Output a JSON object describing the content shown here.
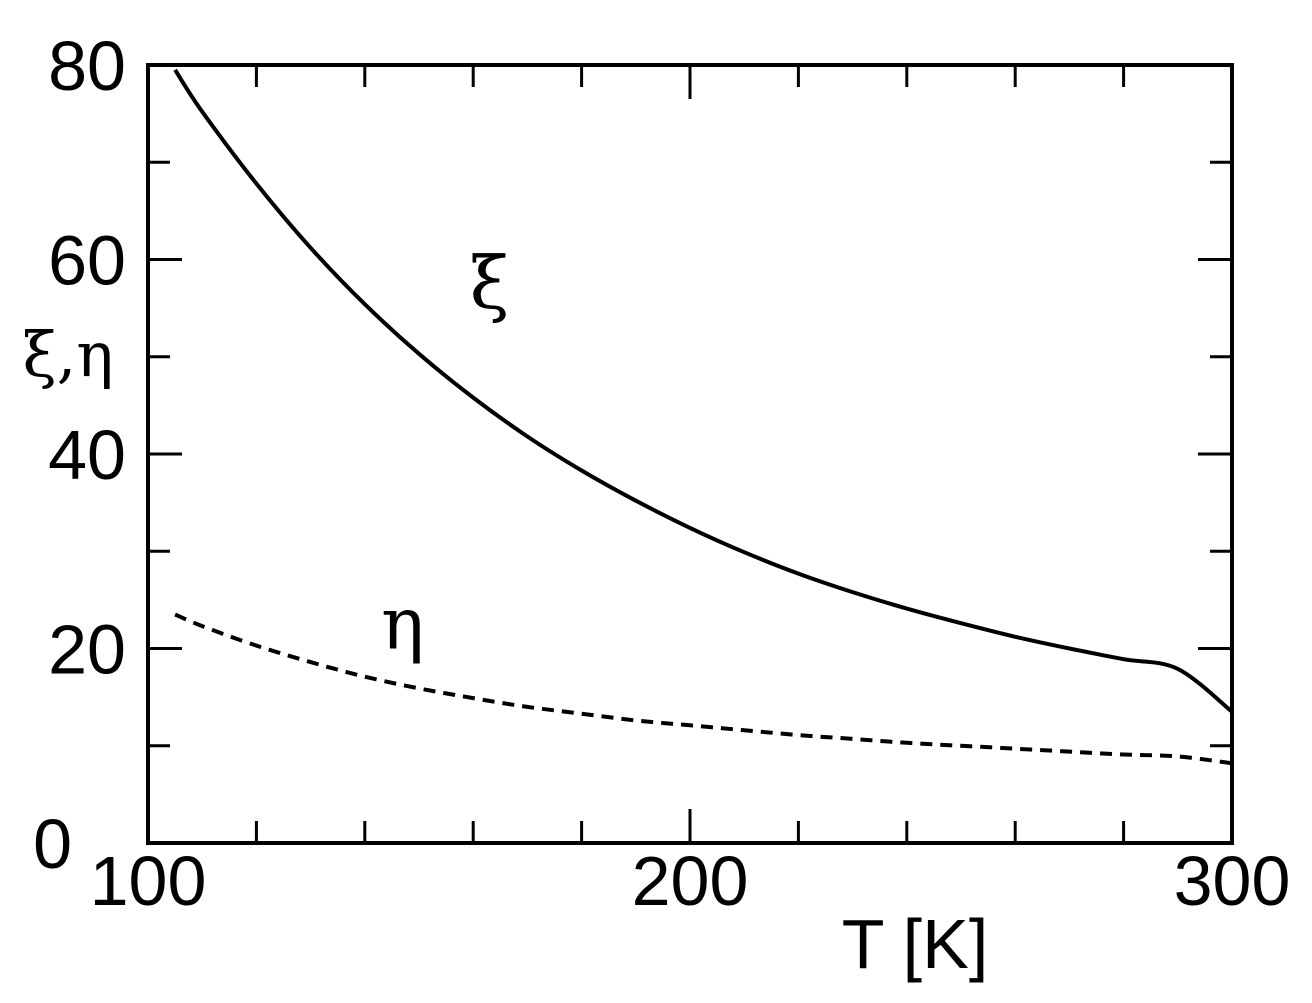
{
  "chart_data": {
    "type": "line",
    "xlabel": "T [K]",
    "ylabel": "ξ,η",
    "xlim": [
      100,
      300
    ],
    "ylim": [
      0,
      80
    ],
    "x_ticks": [
      100,
      200,
      300
    ],
    "x_tick_labels": [
      "100",
      "200",
      "300"
    ],
    "y_ticks": [
      0,
      20,
      40,
      60,
      80
    ],
    "y_tick_labels": [
      "0",
      "20",
      "40",
      "60",
      "80"
    ],
    "x_minor_step": 20,
    "y_minor_step": 10,
    "grid": false,
    "legend": "none",
    "series": [
      {
        "name": "ξ",
        "style": "solid",
        "color": "#000000",
        "x": [
          105,
          110,
          120,
          130,
          140,
          150,
          160,
          170,
          180,
          190,
          200,
          210,
          220,
          230,
          240,
          250,
          260,
          270,
          280,
          290,
          300
        ],
        "y": [
          79.5,
          75.2,
          67.8,
          61.2,
          55.4,
          50.3,
          45.8,
          41.8,
          38.3,
          35.2,
          32.4,
          29.9,
          27.7,
          25.8,
          24.1,
          22.6,
          21.2,
          20.0,
          18.9,
          17.9,
          13.5
        ]
      },
      {
        "name": "η",
        "style": "dashed",
        "color": "#000000",
        "x": [
          105,
          110,
          120,
          130,
          140,
          150,
          160,
          170,
          180,
          190,
          200,
          210,
          220,
          230,
          240,
          250,
          260,
          270,
          280,
          290,
          300
        ],
        "y": [
          23.5,
          22.3,
          20.3,
          18.6,
          17.1,
          15.9,
          14.9,
          14.0,
          13.3,
          12.6,
          12.1,
          11.6,
          11.1,
          10.7,
          10.3,
          10.0,
          9.7,
          9.4,
          9.1,
          8.9,
          8.2
        ]
      }
    ],
    "annotations": [
      {
        "text": "ξ",
        "x": 163,
        "y": 55
      },
      {
        "text": "η",
        "x": 147,
        "y": 20
      }
    ]
  }
}
